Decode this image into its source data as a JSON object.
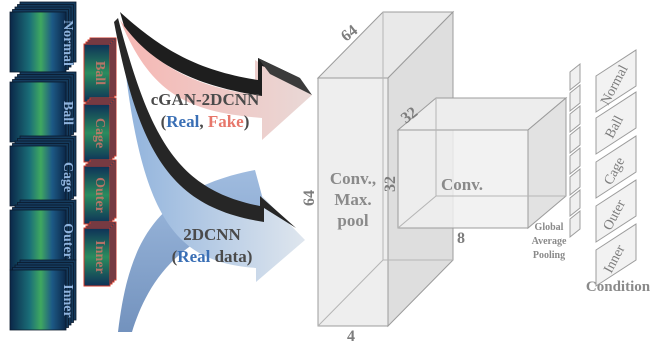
{
  "inputs": {
    "real_stack": [
      "Normal",
      "Ball",
      "Cage",
      "Outer",
      "Inner"
    ],
    "fake_stack": [
      "Ball",
      "Cage",
      "Outer",
      "Inner"
    ]
  },
  "branches": {
    "upper": {
      "title": "cGAN-2DCNN",
      "open": "(",
      "real": "Real",
      "sep": ", ",
      "fake": "Fake",
      "close": ")"
    },
    "lower": {
      "title": "2DCNN",
      "open": "(",
      "real": "Real",
      "rest": " data)"
    }
  },
  "block1": {
    "top": "64",
    "left": "64",
    "bottom": "4",
    "label_lines": [
      "Conv.,",
      "Max.",
      "pool"
    ]
  },
  "block2": {
    "top": "32",
    "left": "32",
    "bottom": "8",
    "label": "Conv."
  },
  "gap": {
    "label_lines": [
      "Global",
      "Average",
      "Pooling"
    ]
  },
  "conditions": {
    "items": [
      "Normal",
      "Ball",
      "Cage",
      "Outer",
      "Inner"
    ],
    "label": "Condition"
  },
  "colors": {
    "real": "#3a6fb5",
    "fake": "#e7776b",
    "cube_text": "#7d7d7d",
    "spectro_dark": "#0b2a4a",
    "spectro_green": "#2f8f5a",
    "fake_border": "#d23a2a"
  }
}
